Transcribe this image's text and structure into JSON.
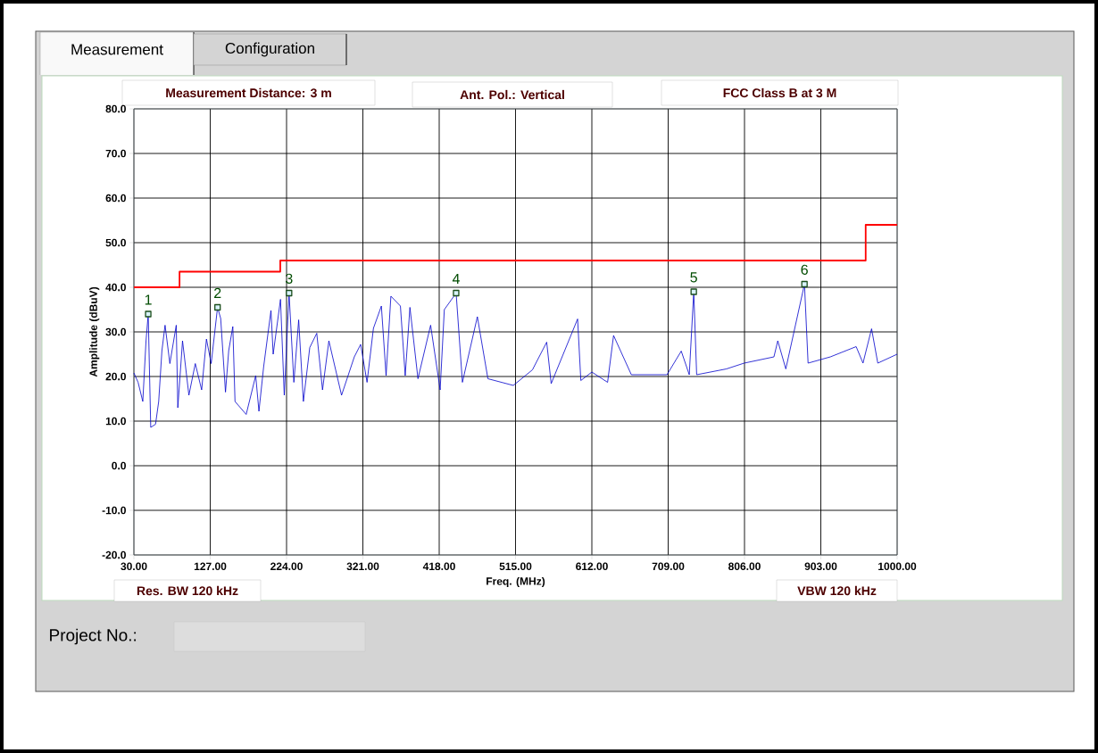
{
  "chart_data": {
    "type": "line",
    "xlabel": "Freq. (MHz)",
    "ylabel": "Amplitude (dBuV)",
    "xlim": [
      30,
      1000
    ],
    "ylim": [
      -20,
      80
    ],
    "xticks": [
      {
        "value": 30,
        "label": "30.00"
      },
      {
        "value": 127,
        "label": "127.00"
      },
      {
        "value": 224,
        "label": "224.00"
      },
      {
        "value": 321,
        "label": "321.00"
      },
      {
        "value": 418,
        "label": "418.00"
      },
      {
        "value": 515,
        "label": "515.00"
      },
      {
        "value": 612,
        "label": "612.00"
      },
      {
        "value": 709,
        "label": "709.00"
      },
      {
        "value": 806,
        "label": "806.00"
      },
      {
        "value": 903,
        "label": "903.00"
      },
      {
        "value": 1000,
        "label": "1000.00"
      }
    ],
    "yticks": [
      {
        "value": -20,
        "label": "-20.0"
      },
      {
        "value": -10,
        "label": "-10.0"
      },
      {
        "value": 0,
        "label": "0.0"
      },
      {
        "value": 10,
        "label": "10.0"
      },
      {
        "value": 20,
        "label": "20.0"
      },
      {
        "value": 30,
        "label": "30.0"
      },
      {
        "value": 40,
        "label": "40.0"
      },
      {
        "value": 50,
        "label": "50.0"
      },
      {
        "value": 60,
        "label": "60.0"
      },
      {
        "value": 70,
        "label": "70.0"
      },
      {
        "value": 80,
        "label": "80.0"
      }
    ],
    "grid": true,
    "series": [
      {
        "color": "#0000cc",
        "x": [
          30,
          35.3,
          41.3,
          45.4,
          48.2,
          51.4,
          57.5,
          61.5,
          65.6,
          69.6,
          75.7,
          83.8,
          85.8,
          91.8,
          99.9,
          108,
          116.1,
          122.2,
          128.2,
          136.3,
          140.3,
          146.4,
          150.5,
          155.7,
          158.5,
          172.7,
          184.8,
          188.9,
          194.9,
          204.2,
          207,
          216.3,
          221.1,
          227.2,
          233.3,
          239.4,
          245.4,
          253.5,
          262.4,
          269.7,
          277.8,
          293.9,
          310.1,
          318.2,
          326.3,
          334.4,
          344.5,
          350.5,
          356.6,
          368.7,
          374.8,
          380.8,
          391,
          407.1,
          419.2,
          424.5,
          439.5,
          447.5,
          466.5,
          479.9,
          512.2,
          536.5,
          554.6,
          560.3,
          593.9,
          598,
          612,
          632,
          639.6,
          662.2,
          707.5,
          725.6,
          735.8,
          741.5,
          745.2,
          783,
          805.6,
          843.4,
          848.3,
          858.5,
          882.2,
          886.8,
          915.1,
          947.9,
          956.6,
          967.5,
          975.4,
          1000
        ],
        "values": [
          20.8,
          18.7,
          14.4,
          28,
          34,
          8.6,
          9.3,
          14.4,
          25.8,
          31.5,
          22.9,
          31.5,
          13,
          28,
          15.8,
          22.9,
          17,
          28.4,
          22.9,
          35.5,
          33,
          16.5,
          25.8,
          31.2,
          14.4,
          11.5,
          20.2,
          12.2,
          22.2,
          34.8,
          25,
          37.3,
          15.8,
          38.7,
          18.7,
          32.7,
          14.4,
          26.5,
          29.7,
          17,
          28,
          15.8,
          24.4,
          27.2,
          18.7,
          30.8,
          35.8,
          20.2,
          38,
          35.8,
          20.2,
          35.5,
          19.5,
          31.5,
          17,
          35,
          38.7,
          18.7,
          33.4,
          19.5,
          18,
          21.5,
          27.7,
          18.4,
          32.9,
          19.1,
          21,
          18.7,
          29.2,
          20.4,
          20.4,
          25.7,
          20.4,
          39,
          20.4,
          21.7,
          23,
          24.4,
          28,
          21.7,
          40.7,
          23,
          24.4,
          26.7,
          23,
          30.7,
          23,
          25
        ]
      },
      {
        "type": "step",
        "color": "#ff0000",
        "x": [
          30,
          88,
          216,
          960,
          1000
        ],
        "values": [
          40,
          43.5,
          46,
          54,
          54
        ]
      },
      {
        "type": "scatter",
        "color": "#1a4d1a",
        "marker": "square",
        "x": [
          48.2,
          136.3,
          227.2,
          439.5,
          741.5,
          882.2
        ],
        "values": [
          34,
          35.5,
          38.7,
          38.7,
          39,
          40.7
        ]
      }
    ],
    "annotations": [
      "Measurement Distance: 3 m",
      "Ant. Pol.: Vertical",
      "FCC Class B at 3 M",
      "Res. BW 120 kHz",
      "VBW 120 kHz",
      "Project No.:",
      "Measurement",
      "Configuration",
      {
        "text": "1",
        "x": 48.2,
        "y": 34
      },
      {
        "text": "2",
        "x": 136.3,
        "y": 35.5
      },
      {
        "text": "3",
        "x": 227.2,
        "y": 38.7
      },
      {
        "text": "4",
        "x": 439.5,
        "y": 38.7
      },
      {
        "text": "5",
        "x": 741.5,
        "y": 39
      },
      {
        "text": "6",
        "x": 882.2,
        "y": 40.7
      }
    ]
  }
}
